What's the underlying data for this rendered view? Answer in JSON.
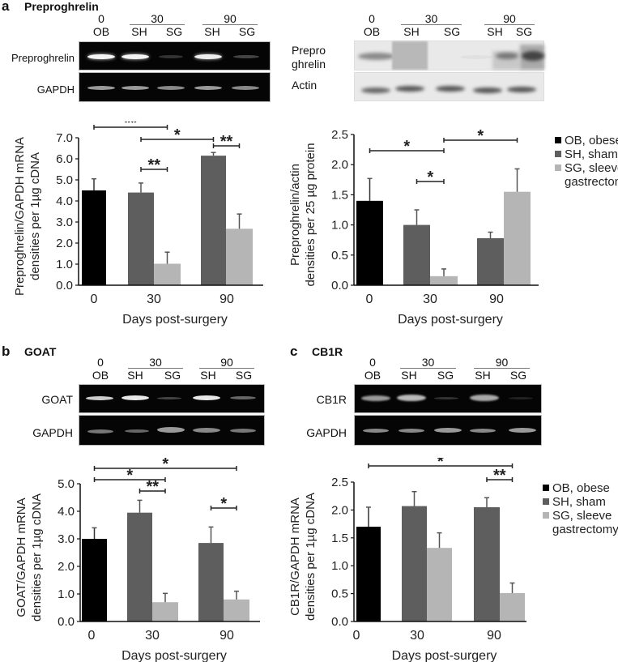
{
  "panels": {
    "a": {
      "label": "a",
      "title": "Preproghrelin",
      "gel": {
        "time_headers": [
          "0",
          "30",
          "90"
        ],
        "lane_labels": [
          "OB",
          "SH",
          "SG",
          "SH",
          "SG"
        ],
        "rows": [
          "Preproghrelin",
          "GAPDH"
        ]
      },
      "blot": {
        "time_headers": [
          "0",
          "30",
          "90"
        ],
        "lane_labels": [
          "OB",
          "SH",
          "SG",
          "SH",
          "SG"
        ],
        "rows": [
          "Prepro",
          "ghrelin",
          "Actin"
        ]
      }
    },
    "b": {
      "label": "b",
      "title": "GOAT",
      "gel": {
        "time_headers": [
          "0",
          "30",
          "90"
        ],
        "lane_labels": [
          "OB",
          "SH",
          "SG",
          "SH",
          "SG"
        ],
        "rows": [
          "GOAT",
          "GAPDH"
        ]
      }
    },
    "c": {
      "label": "c",
      "title": "CB1R",
      "gel": {
        "time_headers": [
          "0",
          "30",
          "90"
        ],
        "lane_labels": [
          "OB",
          "SH",
          "SG",
          "SH",
          "SG"
        ],
        "rows": [
          "CB1R",
          "GAPDH"
        ]
      }
    }
  },
  "legend": {
    "items": [
      {
        "label": "OB, obese",
        "color": "#000000"
      },
      {
        "label": "SH, sham",
        "color": "#5e5e5e"
      },
      {
        "label": "SG, sleeve",
        "color": "#b5b5b5"
      },
      {
        "label": "gastrectomy",
        "color": null
      }
    ]
  },
  "colors": {
    "OB": "#000000",
    "SH": "#5e5e5e",
    "SG": "#b5b5b5"
  },
  "chart_data": [
    {
      "id": "a-mrna",
      "type": "bar",
      "title": "Preproghrelin",
      "xlabel": "Days post-surgery",
      "ylabel": [
        "Preproghrelin/GAPDH mRNA",
        "densities per 1µg cDNA"
      ],
      "ylim": [
        0,
        7
      ],
      "yticks": [
        "0.0",
        "1.0",
        "2.0",
        "3.0",
        "4.0",
        "5.0",
        "6.0",
        "7.0"
      ],
      "categories": [
        "0",
        "30",
        "90"
      ],
      "series": [
        {
          "name": "OB, obese",
          "values": [
            4.5,
            null,
            null
          ],
          "errors": [
            0.55,
            null,
            null
          ]
        },
        {
          "name": "SH, sham",
          "values": [
            null,
            4.4,
            6.15
          ],
          "errors": [
            null,
            0.45,
            0.15
          ]
        },
        {
          "name": "SG, sleeve gastrectomy",
          "values": [
            null,
            1.02,
            2.68
          ],
          "errors": [
            null,
            0.55,
            0.7
          ]
        }
      ],
      "annotations": [
        {
          "from": "OB-0",
          "to": "SG-30",
          "label": "**"
        },
        {
          "from": "SH-30",
          "to": "SG-30",
          "label": "**"
        },
        {
          "from": "SH-30",
          "to": "SH-90",
          "label": "*"
        },
        {
          "from": "SH-90",
          "to": "SG-90",
          "label": "**"
        }
      ]
    },
    {
      "id": "a-protein",
      "type": "bar",
      "title": "Preproghrelin",
      "xlabel": "Days post-surgery",
      "ylabel": [
        "Preproghrelin/actin",
        "densities per 25 µg protein"
      ],
      "ylim": [
        0,
        2.5
      ],
      "yticks": [
        "0.0",
        "0.5",
        "1.0",
        "1.5",
        "2.0",
        "2.5"
      ],
      "categories": [
        "0",
        "30",
        "90"
      ],
      "series": [
        {
          "name": "OB, obese",
          "values": [
            1.4,
            null,
            null
          ],
          "errors": [
            0.37,
            null,
            null
          ]
        },
        {
          "name": "SH, sham",
          "values": [
            null,
            1.0,
            0.78
          ],
          "errors": [
            null,
            0.25,
            0.1
          ]
        },
        {
          "name": "SG, sleeve gastrectomy",
          "values": [
            null,
            0.15,
            1.55
          ],
          "errors": [
            null,
            0.12,
            0.38
          ]
        }
      ],
      "annotations": [
        {
          "from": "OB-0",
          "to": "SG-30",
          "label": "*"
        },
        {
          "from": "SH-30",
          "to": "SG-30",
          "label": "*"
        },
        {
          "from": "SG-30",
          "to": "SG-90",
          "label": "*"
        }
      ]
    },
    {
      "id": "b-mrna",
      "type": "bar",
      "title": "GOAT",
      "xlabel": "Days post-surgery",
      "ylabel": [
        "GOAT/GAPDH mRNA",
        "densities per 1µg cDNA"
      ],
      "ylim": [
        0,
        5
      ],
      "yticks": [
        "0.0",
        "1.0",
        "2.0",
        "3.0",
        "4.0",
        "5.0"
      ],
      "categories": [
        "0",
        "30",
        "90"
      ],
      "series": [
        {
          "name": "OB, obese",
          "values": [
            3.0,
            null,
            null
          ],
          "errors": [
            0.4,
            null,
            null
          ]
        },
        {
          "name": "SH, sham",
          "values": [
            null,
            3.95,
            2.85
          ],
          "errors": [
            null,
            0.45,
            0.58
          ]
        },
        {
          "name": "SG, sleeve gastrectomy",
          "values": [
            null,
            0.7,
            0.8
          ],
          "errors": [
            null,
            0.32,
            0.3
          ]
        }
      ],
      "annotations": [
        {
          "from": "OB-0",
          "to": "SG-90",
          "label": "*"
        },
        {
          "from": "OB-0",
          "to": "SG-30",
          "label": "*"
        },
        {
          "from": "SH-30",
          "to": "SG-30",
          "label": "**"
        },
        {
          "from": "SH-90",
          "to": "SG-90",
          "label": "*"
        }
      ]
    },
    {
      "id": "c-mrna",
      "type": "bar",
      "title": "CB1R",
      "xlabel": "Days post-surgery",
      "ylabel": [
        "CB1R/GAPDH mRNA",
        "densities per 1µg cDNA"
      ],
      "ylim": [
        0,
        2.5
      ],
      "yticks": [
        "0.0",
        "0.5",
        "1.0",
        "1.5",
        "2.0",
        "2.5"
      ],
      "categories": [
        "0",
        "30",
        "90"
      ],
      "series": [
        {
          "name": "OB, obese",
          "values": [
            1.7,
            null,
            null
          ],
          "errors": [
            0.35,
            null,
            null
          ]
        },
        {
          "name": "SH, sham",
          "values": [
            null,
            2.07,
            2.05
          ],
          "errors": [
            null,
            0.26,
            0.17
          ]
        },
        {
          "name": "SG, sleeve gastrectomy",
          "values": [
            null,
            1.32,
            0.51
          ],
          "errors": [
            null,
            0.27,
            0.18
          ]
        }
      ],
      "annotations": [
        {
          "from": "OB-0",
          "to": "SG-90",
          "label": "*"
        },
        {
          "from": "SH-90",
          "to": "SG-90",
          "label": "**"
        }
      ]
    }
  ]
}
